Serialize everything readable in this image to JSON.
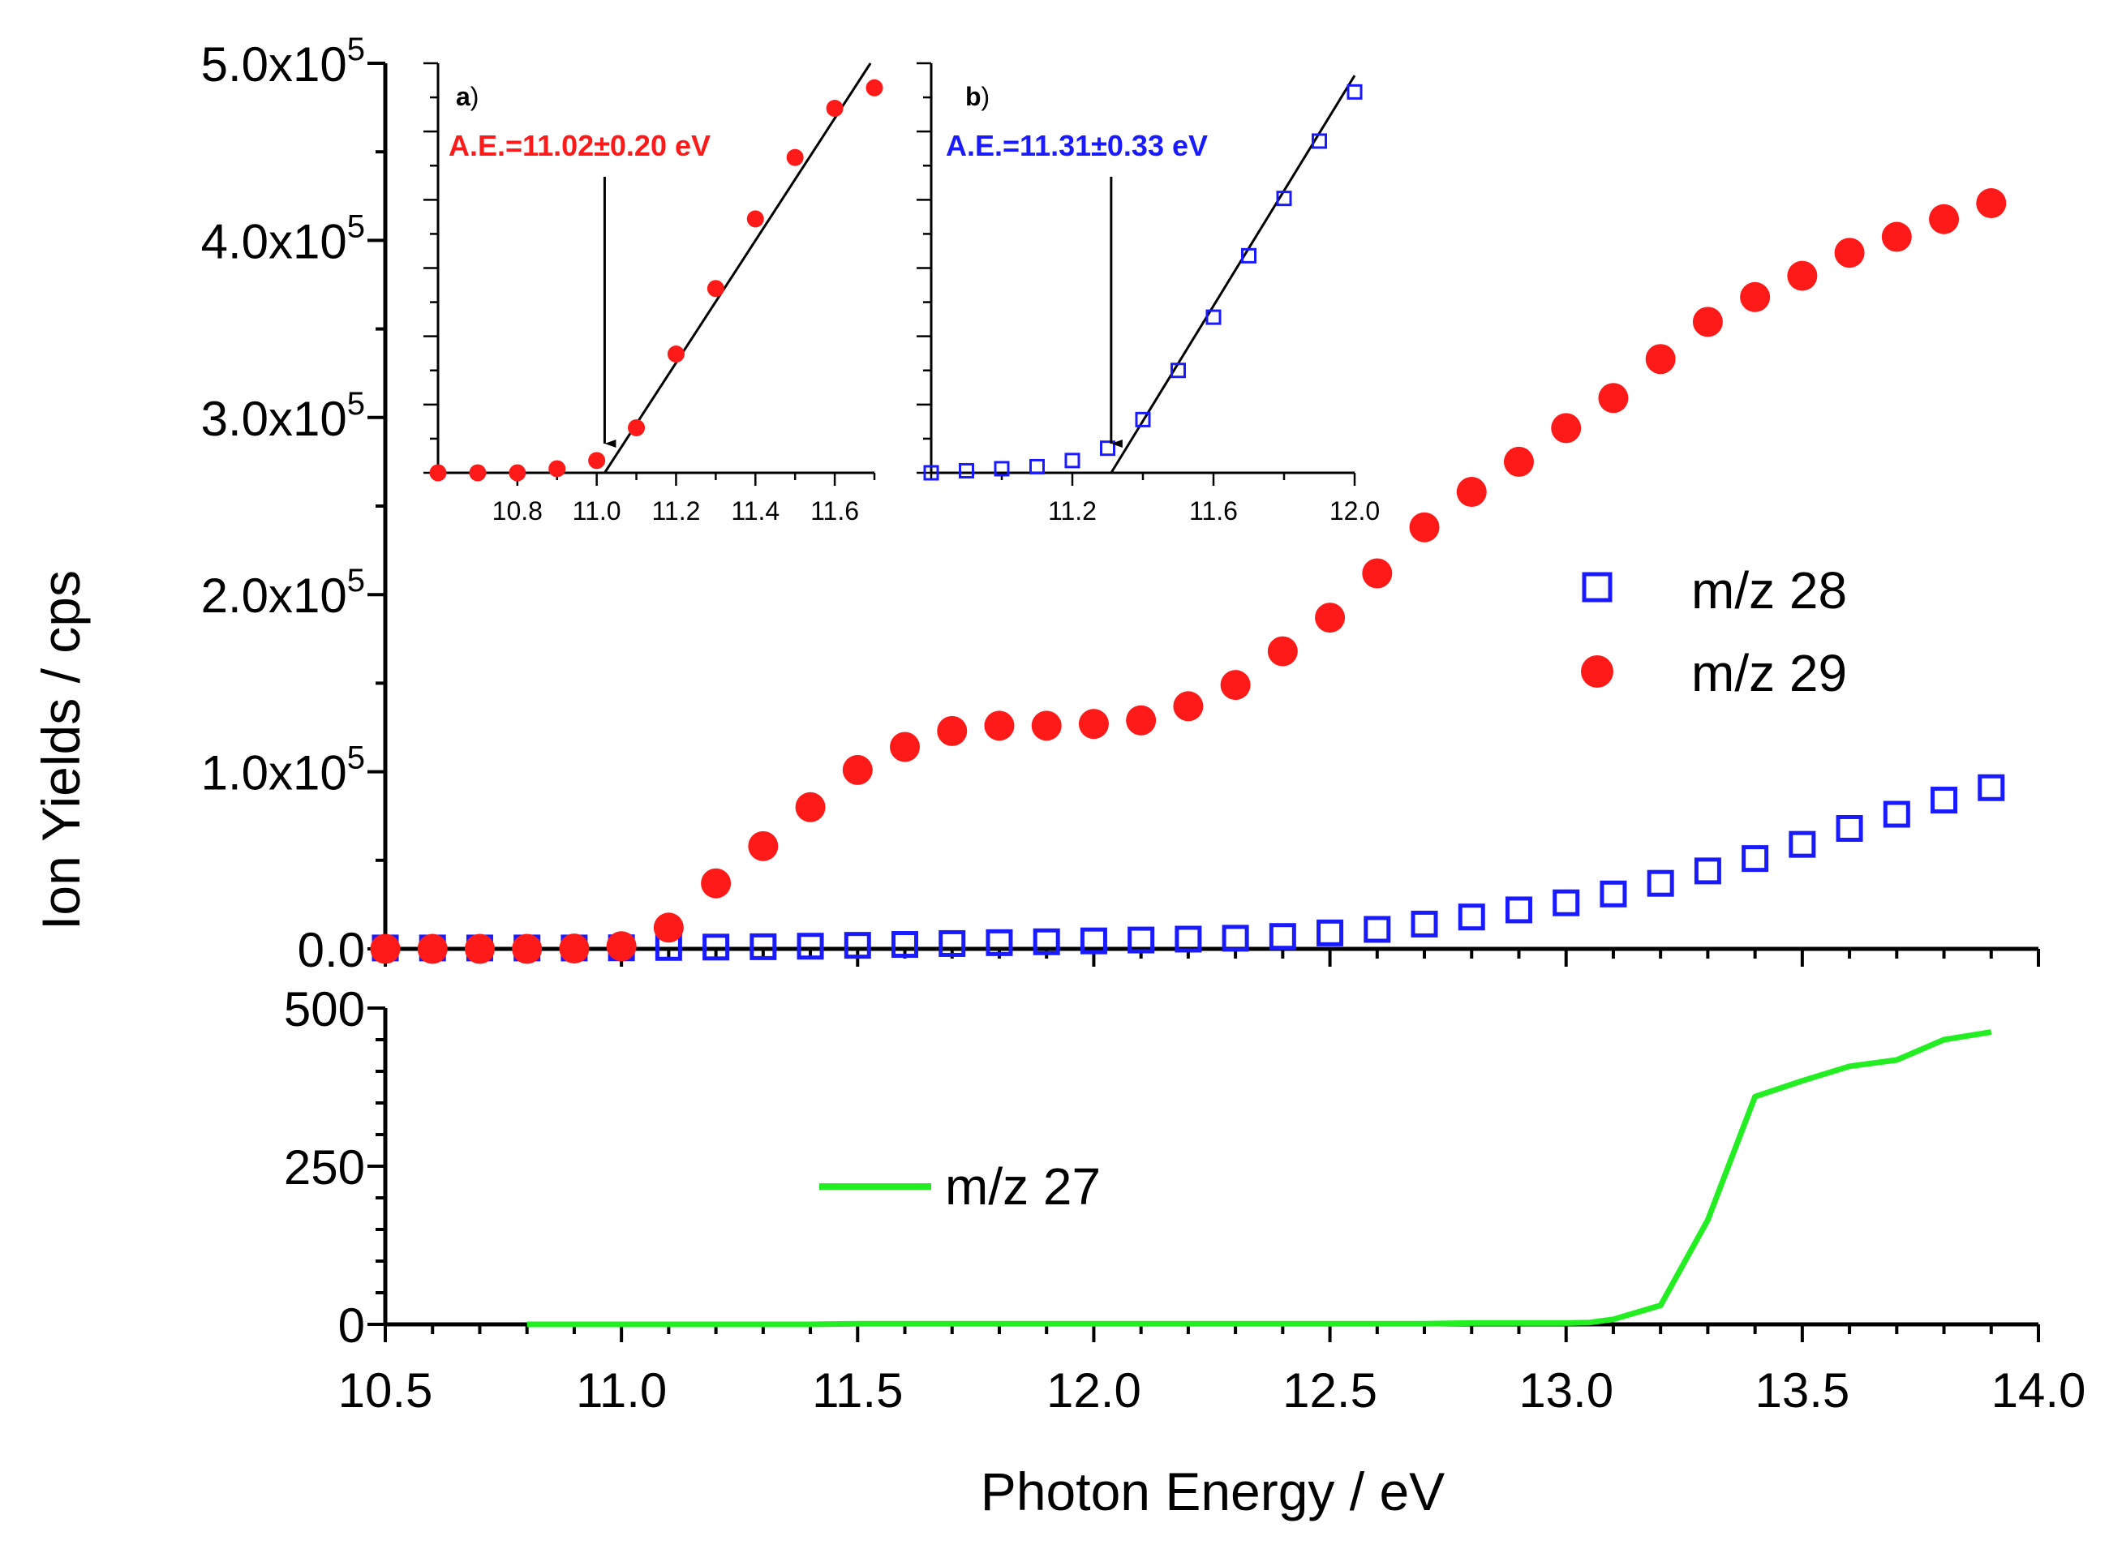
{
  "figure": {
    "ylabel_main": "Ion Yields / cps",
    "xlabel": "Photon Energy / eV"
  },
  "chart_data": [
    {
      "id": "main",
      "type": "scatter",
      "xlabel": "Photon Energy / eV",
      "ylabel": "Ion Yields / cps",
      "xlim": [
        10.5,
        14.0
      ],
      "ylim": [
        0,
        500000
      ],
      "y_tick_labels": [
        {
          "value": 0,
          "label": "0.0"
        },
        {
          "value": 100000,
          "label": "1.0x10",
          "exp": "5"
        },
        {
          "value": 200000,
          "label": "2.0x10",
          "exp": "5"
        },
        {
          "value": 300000,
          "label": "3.0x10",
          "exp": "5"
        },
        {
          "value": 400000,
          "label": "4.0x10",
          "exp": "5"
        },
        {
          "value": 500000,
          "label": "5.0x10",
          "exp": "5"
        }
      ],
      "x": [
        10.5,
        10.6,
        10.7,
        10.8,
        10.9,
        11.0,
        11.1,
        11.2,
        11.3,
        11.4,
        11.5,
        11.6,
        11.7,
        11.8,
        11.9,
        12.0,
        12.1,
        12.2,
        12.3,
        12.4,
        12.5,
        12.6,
        12.7,
        12.8,
        12.9,
        13.0,
        13.1,
        13.2,
        13.3,
        13.4,
        13.5,
        13.6,
        13.7,
        13.8,
        13.9
      ],
      "series": [
        {
          "name": "m/z 28",
          "marker": "open-square",
          "color": "#1a1aff",
          "values": [
            500,
            500,
            500,
            500,
            500,
            600,
            800,
            1000,
            1200,
            1500,
            2000,
            2500,
            3000,
            3500,
            4000,
            4500,
            5000,
            5500,
            6000,
            7000,
            9000,
            11000,
            14000,
            18000,
            22000,
            26000,
            31000,
            37000,
            44000,
            51000,
            59000,
            68000,
            76000,
            84000,
            91000
          ]
        },
        {
          "name": "m/z 29",
          "marker": "filled-circle",
          "color": "#ff1a1a",
          "values": [
            0,
            0,
            0,
            0,
            200,
            1500,
            12000,
            37000,
            58000,
            80000,
            101000,
            114000,
            123000,
            126000,
            126000,
            127000,
            129000,
            137000,
            149000,
            168000,
            187000,
            212000,
            238000,
            258000,
            275000,
            294000,
            311000,
            333000,
            354000,
            368000,
            380000,
            393000,
            402000,
            412000,
            421000
          ]
        }
      ]
    },
    {
      "id": "lower",
      "type": "line",
      "xlim": [
        10.5,
        14.0
      ],
      "ylim": [
        0,
        500
      ],
      "y_ticks": [
        0,
        250,
        500
      ],
      "x_ticks": [
        10.5,
        11.0,
        11.5,
        12.0,
        12.5,
        13.0,
        13.5,
        14.0
      ],
      "x_tick_labels": [
        "10.5",
        "11.0",
        "11.5",
        "12.0",
        "12.5",
        "13.0",
        "13.5",
        "14.0"
      ],
      "series": [
        {
          "name": "m/z 27",
          "color": "#22ee22",
          "x": [
            10.8,
            10.9,
            11.0,
            11.1,
            11.2,
            11.3,
            11.4,
            11.5,
            11.6,
            11.7,
            11.8,
            11.9,
            12.0,
            12.1,
            12.2,
            12.3,
            12.4,
            12.5,
            12.6,
            12.7,
            12.8,
            12.9,
            13.0,
            13.05,
            13.1,
            13.2,
            13.3,
            13.4,
            13.5,
            13.6,
            13.7,
            13.8,
            13.9
          ],
          "values": [
            0,
            0,
            0,
            0,
            0,
            0,
            0,
            1,
            1,
            1,
            1,
            1,
            1,
            1,
            1,
            1,
            1,
            1,
            1,
            1,
            2,
            2,
            2,
            3,
            8,
            30,
            165,
            360,
            385,
            408,
            418,
            450,
            462
          ]
        }
      ]
    },
    {
      "id": "inset-a",
      "type": "scatter",
      "panel_label": "a",
      "annotation": "A.E.=11.02±0.20 eV",
      "threshold_x": 11.02,
      "xlim": [
        10.6,
        11.7
      ],
      "ylim": [
        0,
        1
      ],
      "x_ticks": [
        10.8,
        11.0,
        11.2,
        11.4,
        11.6
      ],
      "x_tick_labels": [
        "10.8",
        "11.0",
        "11.2",
        "11.4",
        "11.6"
      ],
      "series": [
        {
          "name": "m/z 29",
          "marker": "filled-circle",
          "color": "#ff1a1a",
          "x": [
            10.6,
            10.7,
            10.8,
            10.9,
            11.0,
            11.1,
            11.2,
            11.3,
            11.4,
            11.5,
            11.6,
            11.7
          ],
          "values": [
            0.0,
            0.0,
            0.0,
            0.01,
            0.03,
            0.11,
            0.29,
            0.45,
            0.62,
            0.77,
            0.89,
            0.94
          ]
        }
      ],
      "fit_line": {
        "x": [
          11.02,
          11.69
        ],
        "y": [
          0.0,
          1.0
        ]
      }
    },
    {
      "id": "inset-b",
      "type": "scatter",
      "panel_label": "b",
      "annotation": "A.E.=11.31±0.33 eV",
      "threshold_x": 11.31,
      "xlim": [
        10.8,
        12.0
      ],
      "ylim": [
        0,
        1
      ],
      "x_ticks": [
        11.2,
        11.6,
        12.0
      ],
      "x_tick_labels": [
        "11.2",
        "11.6",
        "12.0"
      ],
      "series": [
        {
          "name": "m/z 28",
          "marker": "open-square",
          "color": "#1a1aff",
          "x": [
            10.8,
            10.9,
            11.0,
            11.1,
            11.2,
            11.3,
            11.4,
            11.5,
            11.6,
            11.7,
            11.8,
            11.9,
            12.0
          ],
          "values": [
            0.0,
            0.005,
            0.01,
            0.015,
            0.03,
            0.06,
            0.13,
            0.25,
            0.38,
            0.53,
            0.67,
            0.81,
            0.93
          ]
        }
      ],
      "fit_line": {
        "x": [
          11.31,
          12.0
        ],
        "y": [
          0.0,
          0.97
        ]
      }
    }
  ]
}
